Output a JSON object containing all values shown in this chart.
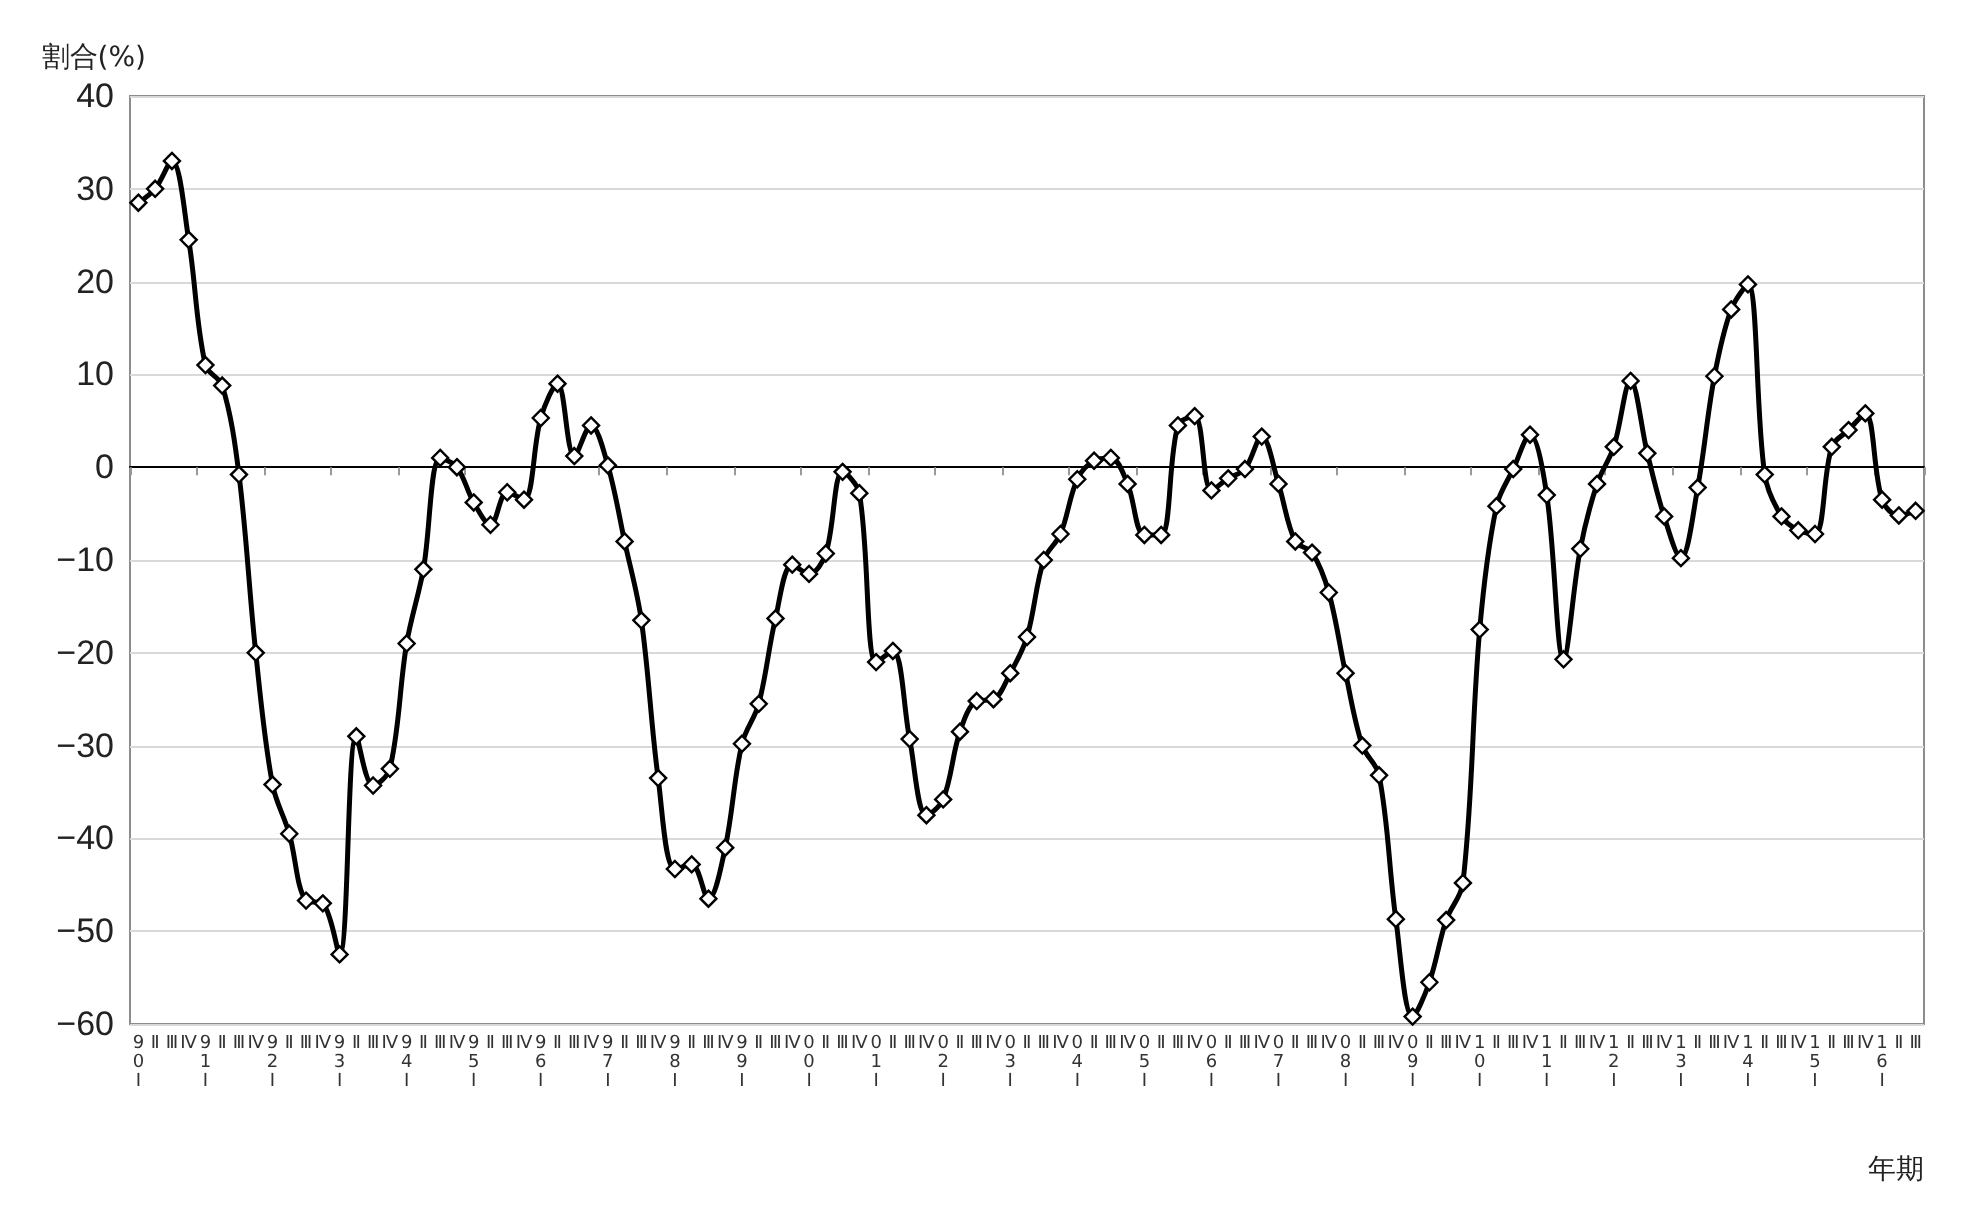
{
  "chart_data": {
    "type": "line",
    "xlabel": "年期",
    "ylabel": "割合(%)",
    "categories": [
      "90Ⅰ",
      "Ⅱ",
      "Ⅲ",
      "Ⅳ",
      "91Ⅰ",
      "Ⅱ",
      "Ⅲ",
      "Ⅳ",
      "92Ⅰ",
      "Ⅱ",
      "Ⅲ",
      "Ⅳ",
      "93Ⅰ",
      "Ⅱ",
      "Ⅲ",
      "Ⅳ",
      "94Ⅰ",
      "Ⅱ",
      "Ⅲ",
      "Ⅳ",
      "95Ⅰ",
      "Ⅱ",
      "Ⅲ",
      "Ⅳ",
      "96Ⅰ",
      "Ⅱ",
      "Ⅲ",
      "Ⅳ",
      "97Ⅰ",
      "Ⅱ",
      "Ⅲ",
      "Ⅳ",
      "98Ⅰ",
      "Ⅱ",
      "Ⅲ",
      "Ⅳ",
      "99Ⅰ",
      "Ⅱ",
      "Ⅲ",
      "Ⅳ",
      "00Ⅰ",
      "Ⅱ",
      "Ⅲ",
      "Ⅳ",
      "01Ⅰ",
      "Ⅱ",
      "Ⅲ",
      "Ⅳ",
      "02Ⅰ",
      "Ⅱ",
      "Ⅲ",
      "Ⅳ",
      "03Ⅰ",
      "Ⅱ",
      "Ⅲ",
      "Ⅳ",
      "04Ⅰ",
      "Ⅱ",
      "Ⅲ",
      "Ⅳ",
      "05Ⅰ",
      "Ⅱ",
      "Ⅲ",
      "Ⅳ",
      "06Ⅰ",
      "Ⅱ",
      "Ⅲ",
      "Ⅳ",
      "07Ⅰ",
      "Ⅱ",
      "Ⅲ",
      "Ⅳ",
      "08Ⅰ",
      "Ⅱ",
      "Ⅲ",
      "Ⅳ",
      "09Ⅰ",
      "Ⅱ",
      "Ⅲ",
      "Ⅳ",
      "10Ⅰ",
      "Ⅱ",
      "Ⅲ",
      "Ⅳ",
      "11Ⅰ",
      "Ⅱ",
      "Ⅲ",
      "Ⅳ",
      "12Ⅰ",
      "Ⅱ",
      "Ⅲ",
      "Ⅳ",
      "13Ⅰ",
      "Ⅱ",
      "Ⅲ",
      "Ⅳ",
      "14Ⅰ",
      "Ⅱ",
      "Ⅲ",
      "Ⅳ",
      "15Ⅰ",
      "Ⅱ",
      "Ⅲ",
      "Ⅳ",
      "16Ⅰ",
      "Ⅱ",
      "Ⅲ"
    ],
    "series": [
      {
        "color": "#000000",
        "values": [
          28.5,
          30,
          33,
          24.5,
          11,
          8.8,
          -0.8,
          -20,
          -34.2,
          -39.5,
          -46.7,
          -47,
          -52.5,
          -29,
          -34.3,
          -32.5,
          -19,
          -11,
          1,
          0,
          -3.8,
          -6.2,
          -2.7,
          -3.5,
          5.3,
          9,
          1.2,
          4.5,
          0.2,
          -8,
          -16.5,
          -33.5,
          -43.3,
          -42.8,
          -46.5,
          -41,
          -29.8,
          -25.5,
          -16.3,
          -10.5,
          -11.5,
          -9.3,
          -0.5,
          -2.8,
          -21,
          -19.8,
          -29.3,
          -37.5,
          -35.8,
          -28.5,
          -25.2,
          -25,
          -22.2,
          -18.3,
          -10,
          -7.2,
          -1.3,
          0.7,
          1,
          -1.8,
          -7.3,
          -7.3,
          4.5,
          5.5,
          -2.5,
          -1.2,
          -0.2,
          3.3,
          -1.8,
          -8,
          -9.2,
          -13.5,
          -22.2,
          -30,
          -33.2,
          -48.7,
          -59.2,
          -55.5,
          -48.8,
          -44.8,
          -17.5,
          -4.2,
          -0.2,
          3.5,
          -3,
          -20.7,
          -8.8,
          -1.8,
          2.2,
          9.3,
          1.5,
          -5.3,
          -9.8,
          -2.2,
          9.8,
          17,
          19.7,
          -0.8,
          -5.3,
          -6.8,
          -7.2,
          2.2,
          4,
          5.8,
          -3.5,
          -5.2,
          -4.7
        ]
      }
    ],
    "ylim": [
      -60,
      40
    ],
    "yticks": [
      {
        "value": -60,
        "label": "−60"
      },
      {
        "value": -50,
        "label": "−50"
      },
      {
        "value": -40,
        "label": "−40"
      },
      {
        "value": -30,
        "label": "−30"
      },
      {
        "value": -20,
        "label": "−20"
      },
      {
        "value": -10,
        "label": "−10"
      },
      0,
      10,
      20,
      30,
      40
    ],
    "grid": "y",
    "marker": "diamond",
    "line_style": "solid"
  }
}
